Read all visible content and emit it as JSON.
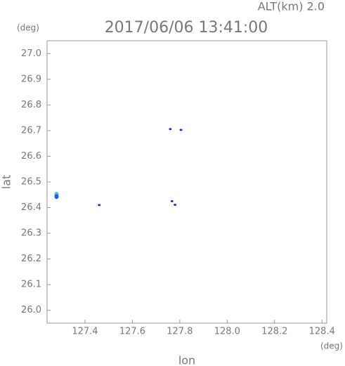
{
  "chart_data": {
    "type": "scatter",
    "title": "2017/06/06 13:41:00",
    "subtitle": "ALT(km) 2.0",
    "y_unit": "(deg)",
    "x_unit": "(deg)",
    "xlabel": "lon",
    "ylabel": "lat",
    "xlim": [
      127.24,
      128.42
    ],
    "ylim": [
      25.95,
      27.05
    ],
    "xticks": [
      127.4,
      127.6,
      127.8,
      {
        "value": 128,
        "label": "128.0"
      },
      128.2,
      128.4
    ],
    "yticks": [
      {
        "value": 26,
        "label": "26.0"
      },
      26.1,
      26.2,
      26.3,
      26.4,
      26.5,
      26.6,
      26.7,
      26.8,
      26.9,
      {
        "value": 27,
        "label": "27.0"
      }
    ],
    "series": [
      {
        "color": "#33ccee",
        "x": [
          127.28
        ],
        "values": [
          26.452
        ]
      },
      {
        "color": "#3355dd",
        "x": [
          127.28
        ],
        "values": [
          26.443
        ]
      },
      {
        "color": "#2233aa",
        "x": [
          127.46,
          127.76,
          127.805,
          127.767,
          127.78
        ],
        "values": [
          26.41,
          26.706,
          26.703,
          26.425,
          26.411
        ]
      }
    ]
  }
}
